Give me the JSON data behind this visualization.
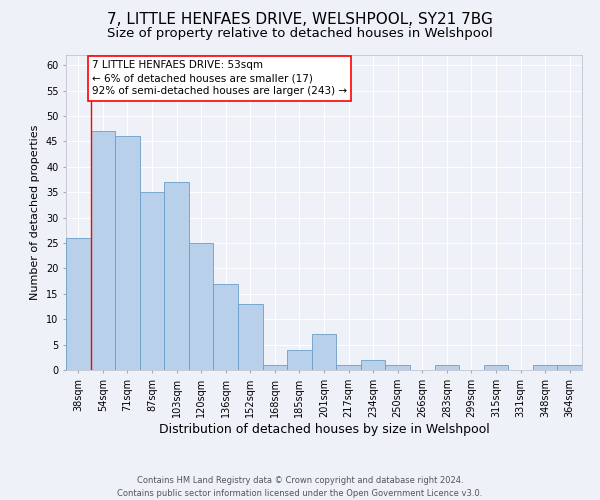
{
  "title1": "7, LITTLE HENFAES DRIVE, WELSHPOOL, SY21 7BG",
  "title2": "Size of property relative to detached houses in Welshpool",
  "xlabel": "Distribution of detached houses by size in Welshpool",
  "ylabel": "Number of detached properties",
  "categories": [
    "38sqm",
    "54sqm",
    "71sqm",
    "87sqm",
    "103sqm",
    "120sqm",
    "136sqm",
    "152sqm",
    "168sqm",
    "185sqm",
    "201sqm",
    "217sqm",
    "234sqm",
    "250sqm",
    "266sqm",
    "283sqm",
    "299sqm",
    "315sqm",
    "331sqm",
    "348sqm",
    "364sqm"
  ],
  "values": [
    26,
    47,
    46,
    35,
    37,
    25,
    17,
    13,
    1,
    4,
    7,
    1,
    2,
    1,
    0,
    1,
    0,
    1,
    0,
    1,
    1
  ],
  "bar_color": "#b8d0ea",
  "bar_edge_color": "#6a9ec8",
  "red_line_x": 0.5,
  "annotation_text": "7 LITTLE HENFAES DRIVE: 53sqm\n← 6% of detached houses are smaller (17)\n92% of semi-detached houses are larger (243) →",
  "annotation_box_color": "white",
  "annotation_box_edge_color": "red",
  "ylim": [
    0,
    62
  ],
  "yticks": [
    0,
    5,
    10,
    15,
    20,
    25,
    30,
    35,
    40,
    45,
    50,
    55,
    60
  ],
  "footer1": "Contains HM Land Registry data © Crown copyright and database right 2024.",
  "footer2": "Contains public sector information licensed under the Open Government Licence v3.0.",
  "bg_color": "#eef2f8",
  "grid_color": "#ffffff",
  "title1_fontsize": 11,
  "title2_fontsize": 9.5,
  "tick_fontsize": 7,
  "ylabel_fontsize": 8,
  "xlabel_fontsize": 9,
  "footer_fontsize": 6,
  "annot_fontsize": 7.5
}
